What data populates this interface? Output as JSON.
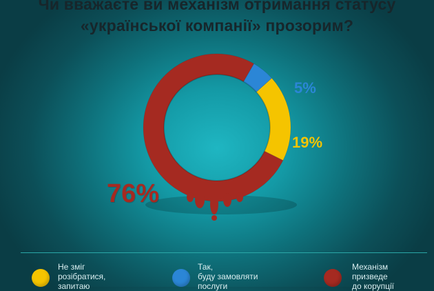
{
  "title": {
    "line1": "Чи вважаєте ви механізм отримання статусу",
    "line2": "«української компанії» прозорим?"
  },
  "colors": {
    "red": "#a52a21",
    "yellow": "#f5c400",
    "blue": "#2b86d6"
  },
  "chart_data": {
    "type": "pie",
    "title": "Чи вважаєте ви механізм отримання статусу «української компанії» прозорим?",
    "slices": [
      {
        "label": "5%",
        "value": 5,
        "color": "#2b86d6"
      },
      {
        "label": "19%",
        "value": 19,
        "color": "#f5c400"
      },
      {
        "label": "76%",
        "value": 76,
        "color": "#a52a21"
      }
    ]
  },
  "legend": [
    {
      "lines": [
        "Не зміг",
        "розібратися,",
        "запитаю"
      ],
      "color": "#f5c400"
    },
    {
      "lines": [
        "Так,",
        "буду замовляти",
        "послуги"
      ],
      "color": "#2b86d6"
    },
    {
      "lines": [
        "Механізм",
        "призведе",
        "до корупції"
      ],
      "color": "#a52a21"
    }
  ]
}
